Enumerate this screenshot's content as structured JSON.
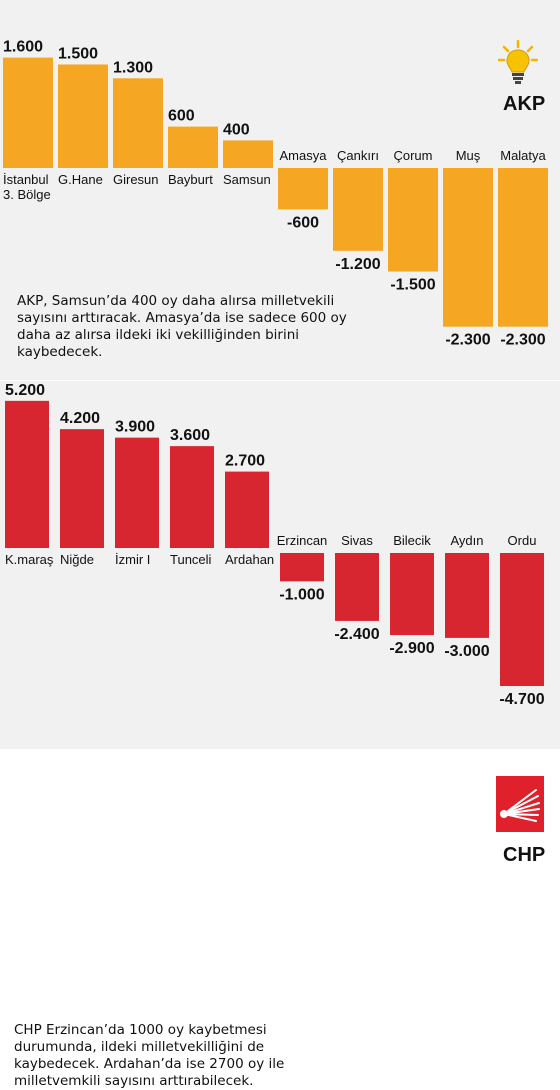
{
  "chart_data": [
    {
      "type": "bar",
      "party": "AKP",
      "categories": [
        "İstanbul 3. Bölge",
        "G.Hane",
        "Giresun",
        "Bayburt",
        "Samsun",
        "Amasya",
        "Çankırı",
        "Çorum",
        "Muş",
        "Malatya"
      ],
      "category_lines": [
        [
          "İstanbul",
          "3. Bölge"
        ],
        [
          "G.Hane"
        ],
        [
          "Giresun"
        ],
        [
          "Bayburt"
        ],
        [
          "Samsun"
        ],
        [
          "Amasya"
        ],
        [
          "Çankırı"
        ],
        [
          "Çorum"
        ],
        [
          "Muş"
        ],
        [
          "Malatya"
        ]
      ],
      "values": [
        1600,
        1500,
        1300,
        600,
        400,
        -600,
        -1200,
        -1500,
        -2300,
        -2300
      ],
      "value_labels": [
        "1.600",
        "1.500",
        "1.300",
        "600",
        "400",
        "-600",
        "-1.200",
        "-1.500",
        "-2.300",
        "-2.300"
      ],
      "color": "#f5a623",
      "note": "AKP, Samsun’da 400 oy daha alırsa milletvekili sayısını arttıracak. Amasya’da ise sadece 600 oy daha az alırsa ildeki iki vekilliğinden birini kaybedecek."
    },
    {
      "type": "bar",
      "party": "CHP",
      "categories": [
        "K.maraş",
        "Niğde",
        "İzmir I",
        "Tunceli",
        "Ardahan",
        "Erzincan",
        "Sivas",
        "Bilecik",
        "Aydın",
        "Ordu"
      ],
      "category_lines": [
        [
          "K.maraş"
        ],
        [
          "Niğde"
        ],
        [
          "İzmir I"
        ],
        [
          "Tunceli"
        ],
        [
          "Ardahan"
        ],
        [
          "Erzincan"
        ],
        [
          "Sivas"
        ],
        [
          "Bilecik"
        ],
        [
          "Aydın"
        ],
        [
          "Ordu"
        ]
      ],
      "values": [
        5200,
        4200,
        3900,
        3600,
        2700,
        -1000,
        -2400,
        -2900,
        -3000,
        -4700
      ],
      "value_labels": [
        "5.200",
        "4.200",
        "3.900",
        "3.600",
        "2.700",
        "-1.000",
        "-2.400",
        "-2.900",
        "-3.000",
        "-4.700"
      ],
      "color": "#d7262f",
      "note": "CHP Erzincan’da 1000 oy kaybetmesi durumunda, ildeki milletvekilliğini de kaybedecek. Ardahan’da ise 2700 oy ile milletvemkili sayısını arttırabilecek."
    }
  ],
  "colors": {
    "panel_bg": "#f1f1f1",
    "akp_orange": "#f5a623",
    "chp_red": "#d7262f",
    "text": "#111111"
  },
  "icons": {
    "akp": "lightbulb-icon",
    "chp": "chp-six-arrows-icon"
  }
}
